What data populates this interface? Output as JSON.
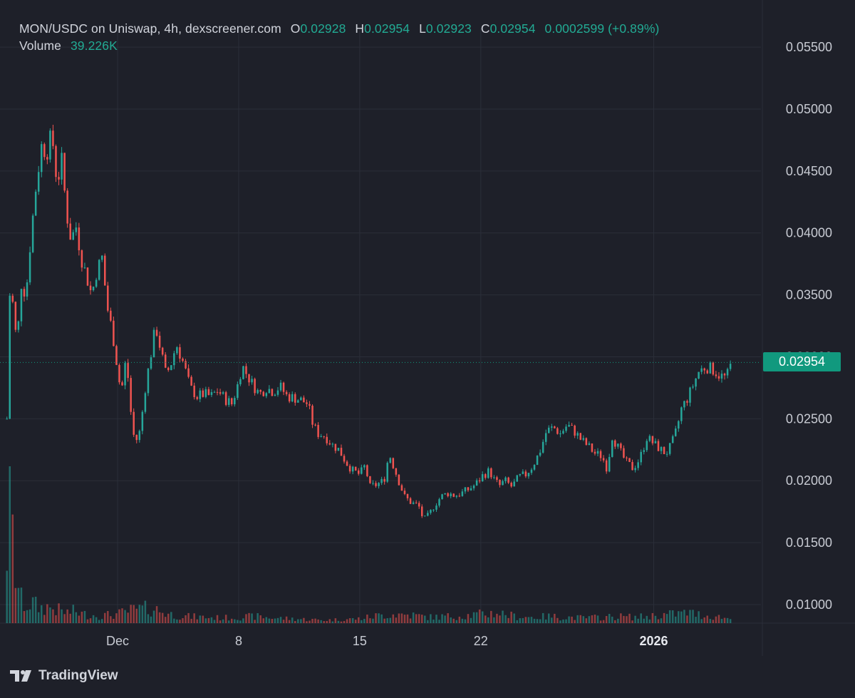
{
  "header": {
    "symbol_line": "MON/USDC on Uniswap, 4h, dexscreener.com",
    "open_label": "O",
    "open_value": "0.02928",
    "high_label": "H",
    "high_value": "0.02954",
    "low_label": "L",
    "low_value": "0.02923",
    "close_label": "C",
    "close_value": "0.02954",
    "change": "0.0002599 (+0.89%)",
    "volume_label": "Volume",
    "volume_value": "39.226K"
  },
  "last_price_label": "0.02954",
  "branding": {
    "name": "TradingView",
    "icon": "tradingview-logo-icon"
  },
  "colors": {
    "background": "#1e2029",
    "grid": "#2b2e39",
    "text": "#d1d4dc",
    "up": "#26a69a",
    "down": "#ef5350",
    "last_price": "#11997e"
  },
  "chart_data": {
    "type": "candlestick",
    "interval": "4h",
    "pair": "MON/USDC",
    "y_axis": {
      "range": [
        0.0085,
        0.0565
      ],
      "ticks": [
        "0.05500",
        "0.05000",
        "0.04500",
        "0.04000",
        "0.03500",
        "0.03000",
        "0.02500",
        "0.02000",
        "0.01500",
        "0.01000"
      ]
    },
    "x_axis": {
      "tick_labels": [
        {
          "label": "Dec",
          "day": 1,
          "bold": false
        },
        {
          "label": "8",
          "day": 8,
          "bold": false
        },
        {
          "label": "15",
          "day": 15,
          "bold": false
        },
        {
          "label": "22",
          "day": 22,
          "bold": false
        },
        {
          "label": "2026",
          "day": 32,
          "bold": true
        }
      ],
      "range_days": [
        -5.8,
        38.2
      ]
    },
    "grid": true,
    "last_price": 0.02954,
    "price_path": [
      [
        -5.4,
        0.025
      ],
      [
        -5.2,
        0.037
      ],
      [
        -5.0,
        0.033
      ],
      [
        -4.8,
        0.031
      ],
      [
        -4.6,
        0.036
      ],
      [
        -4.3,
        0.035
      ],
      [
        -4.0,
        0.04
      ],
      [
        -3.7,
        0.044
      ],
      [
        -3.4,
        0.047
      ],
      [
        -3.1,
        0.0465
      ],
      [
        -2.8,
        0.048
      ],
      [
        -2.5,
        0.044
      ],
      [
        -2.2,
        0.046
      ],
      [
        -2.0,
        0.042
      ],
      [
        -1.7,
        0.0395
      ],
      [
        -1.4,
        0.0405
      ],
      [
        -1.1,
        0.038
      ],
      [
        -0.8,
        0.0365
      ],
      [
        -0.5,
        0.035
      ],
      [
        -0.2,
        0.037
      ],
      [
        0.1,
        0.038
      ],
      [
        0.4,
        0.034
      ],
      [
        0.7,
        0.032
      ],
      [
        1.0,
        0.029
      ],
      [
        1.2,
        0.027
      ],
      [
        1.5,
        0.03
      ],
      [
        1.8,
        0.025
      ],
      [
        2.0,
        0.023
      ],
      [
        2.3,
        0.024
      ],
      [
        2.6,
        0.0275
      ],
      [
        2.9,
        0.03
      ],
      [
        3.2,
        0.0325
      ],
      [
        3.5,
        0.0305
      ],
      [
        3.8,
        0.0285
      ],
      [
        4.1,
        0.0295
      ],
      [
        4.4,
        0.031
      ],
      [
        4.8,
        0.0295
      ],
      [
        5.2,
        0.0275
      ],
      [
        5.6,
        0.0268
      ],
      [
        6.0,
        0.027
      ],
      [
        6.4,
        0.0268
      ],
      [
        6.8,
        0.0273
      ],
      [
        7.2,
        0.0266
      ],
      [
        7.6,
        0.0262
      ],
      [
        7.9,
        0.0275
      ],
      [
        8.2,
        0.0293
      ],
      [
        8.5,
        0.0285
      ],
      [
        8.8,
        0.0278
      ],
      [
        9.2,
        0.027
      ],
      [
        9.6,
        0.0275
      ],
      [
        10.0,
        0.0272
      ],
      [
        10.4,
        0.0276
      ],
      [
        10.8,
        0.0268
      ],
      [
        11.2,
        0.0267
      ],
      [
        11.6,
        0.0265
      ],
      [
        12.0,
        0.0262
      ],
      [
        12.3,
        0.0245
      ],
      [
        12.6,
        0.0238
      ],
      [
        13.0,
        0.0236
      ],
      [
        13.4,
        0.0229
      ],
      [
        13.8,
        0.0225
      ],
      [
        14.2,
        0.0215
      ],
      [
        14.6,
        0.0208
      ],
      [
        15.0,
        0.0205
      ],
      [
        15.3,
        0.0212
      ],
      [
        15.6,
        0.0195
      ],
      [
        16.0,
        0.0197
      ],
      [
        16.4,
        0.02
      ],
      [
        16.7,
        0.0222
      ],
      [
        17.0,
        0.021
      ],
      [
        17.3,
        0.0198
      ],
      [
        17.6,
        0.0187
      ],
      [
        18.0,
        0.0182
      ],
      [
        18.4,
        0.018
      ],
      [
        18.7,
        0.0168
      ],
      [
        19.0,
        0.0172
      ],
      [
        19.3,
        0.018
      ],
      [
        19.7,
        0.0187
      ],
      [
        20.1,
        0.019
      ],
      [
        20.5,
        0.0188
      ],
      [
        20.9,
        0.019
      ],
      [
        21.3,
        0.0193
      ],
      [
        21.7,
        0.0197
      ],
      [
        22.1,
        0.0204
      ],
      [
        22.5,
        0.0208
      ],
      [
        22.8,
        0.02
      ],
      [
        23.1,
        0.0196
      ],
      [
        23.4,
        0.02
      ],
      [
        23.8,
        0.0195
      ],
      [
        24.2,
        0.0203
      ],
      [
        24.6,
        0.0205
      ],
      [
        25.0,
        0.0212
      ],
      [
        25.4,
        0.0223
      ],
      [
        25.8,
        0.024
      ],
      [
        26.2,
        0.0243
      ],
      [
        26.6,
        0.0238
      ],
      [
        27.0,
        0.0245
      ],
      [
        27.4,
        0.024
      ],
      [
        27.8,
        0.0233
      ],
      [
        28.2,
        0.0228
      ],
      [
        28.6,
        0.0222
      ],
      [
        29.0,
        0.022
      ],
      [
        29.3,
        0.021
      ],
      [
        29.6,
        0.0236
      ],
      [
        30.0,
        0.0225
      ],
      [
        30.4,
        0.0215
      ],
      [
        30.8,
        0.021
      ],
      [
        31.2,
        0.0218
      ],
      [
        31.6,
        0.0235
      ],
      [
        32.0,
        0.023
      ],
      [
        32.4,
        0.0225
      ],
      [
        32.7,
        0.0222
      ],
      [
        33.0,
        0.0228
      ],
      [
        33.3,
        0.024
      ],
      [
        33.6,
        0.0258
      ],
      [
        34.0,
        0.0268
      ],
      [
        34.3,
        0.0278
      ],
      [
        34.6,
        0.0288
      ],
      [
        35.0,
        0.0292
      ],
      [
        35.4,
        0.029
      ],
      [
        35.8,
        0.0285
      ],
      [
        36.2,
        0.0283
      ],
      [
        36.5,
        0.0295
      ]
    ],
    "volume_path": [
      [
        -5.4,
        100
      ],
      [
        -5.2,
        170
      ],
      [
        -5.0,
        80
      ],
      [
        -4.6,
        32
      ],
      [
        -4.3,
        22
      ],
      [
        -4.0,
        28
      ],
      [
        -3.5,
        20
      ],
      [
        -3.0,
        22
      ],
      [
        -2.5,
        18
      ],
      [
        -2.0,
        14
      ],
      [
        -1.5,
        16
      ],
      [
        -1.0,
        12
      ],
      [
        0.0,
        10
      ],
      [
        1.0,
        12
      ],
      [
        2.0,
        18
      ],
      [
        3.0,
        20
      ],
      [
        4.0,
        12
      ],
      [
        5.0,
        9
      ],
      [
        6.0,
        8
      ],
      [
        7.0,
        7
      ],
      [
        8.0,
        8
      ],
      [
        9.0,
        9
      ],
      [
        10.0,
        7
      ],
      [
        11.0,
        6
      ],
      [
        12.0,
        5
      ],
      [
        13.0,
        4
      ],
      [
        14.0,
        5
      ],
      [
        15.0,
        6
      ],
      [
        16.0,
        10
      ],
      [
        17.0,
        12
      ],
      [
        18.0,
        11
      ],
      [
        19.0,
        8
      ],
      [
        20.0,
        9
      ],
      [
        21.0,
        10
      ],
      [
        22.0,
        12
      ],
      [
        23.0,
        14
      ],
      [
        24.0,
        9
      ],
      [
        25.0,
        8
      ],
      [
        26.0,
        9
      ],
      [
        27.0,
        8
      ],
      [
        28.0,
        7
      ],
      [
        29.0,
        8
      ],
      [
        30.0,
        9
      ],
      [
        31.0,
        8
      ],
      [
        32.0,
        10
      ],
      [
        33.0,
        12
      ],
      [
        34.0,
        14
      ],
      [
        35.0,
        10
      ],
      [
        36.0,
        8
      ],
      [
        36.5,
        5
      ]
    ]
  }
}
